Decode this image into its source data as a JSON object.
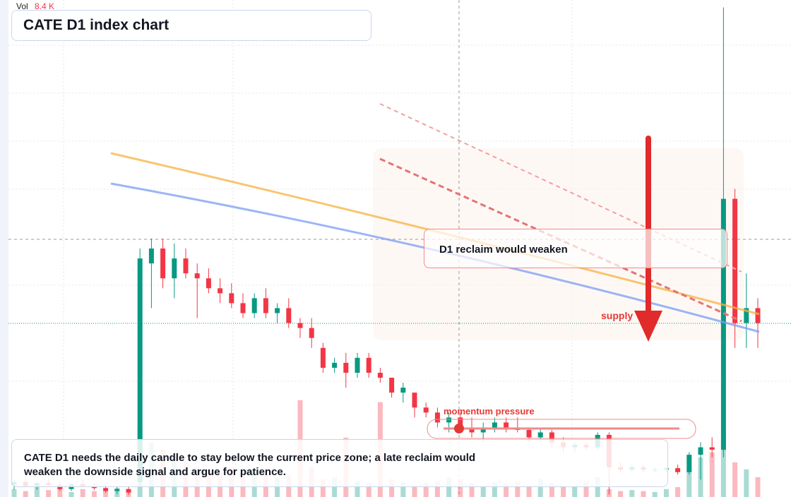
{
  "header": {
    "vol_label": "Vol",
    "vol_value": "8.4 K",
    "title": "CATE D1 index chart"
  },
  "chart_data": {
    "type": "candlestick",
    "ylim": [
      0,
      100
    ],
    "volume_ylim": [
      0,
      100
    ],
    "up_color": "#089981",
    "down_color": "#f23645",
    "candles": [
      [
        2.5,
        3.5,
        1.5,
        3
      ],
      [
        3,
        3.8,
        2,
        2.2
      ],
      [
        2.2,
        3,
        1.5,
        2.8
      ],
      [
        2.8,
        3.6,
        2,
        2.4
      ],
      [
        2.4,
        3.2,
        1.2,
        1.6
      ],
      [
        1.6,
        2.8,
        1.2,
        2.6
      ],
      [
        2.6,
        3.4,
        2,
        2.2
      ],
      [
        2.2,
        2.8,
        1.4,
        1.8
      ],
      [
        1.8,
        2.4,
        0.8,
        1.2
      ],
      [
        1.2,
        2,
        0.6,
        1.6
      ],
      [
        1.6,
        2.2,
        0.4,
        0.9
      ],
      [
        3,
        50,
        2,
        48
      ],
      [
        47,
        52,
        38,
        50
      ],
      [
        50,
        52,
        42,
        44
      ],
      [
        44,
        51,
        40,
        48
      ],
      [
        48,
        50,
        44,
        45
      ],
      [
        45,
        47,
        36,
        44
      ],
      [
        44,
        46,
        41,
        42
      ],
      [
        42,
        44,
        39,
        41
      ],
      [
        41,
        43,
        38,
        39
      ],
      [
        39,
        41,
        36,
        37
      ],
      [
        37,
        41,
        36,
        40
      ],
      [
        40,
        42,
        36,
        37
      ],
      [
        37,
        39,
        35,
        38
      ],
      [
        38,
        40,
        34,
        35
      ],
      [
        35,
        36,
        32,
        34
      ],
      [
        34,
        36,
        30,
        32
      ],
      [
        30,
        31,
        25,
        26
      ],
      [
        26,
        28,
        25,
        27
      ],
      [
        27,
        29,
        22,
        25
      ],
      [
        25,
        29,
        24,
        28
      ],
      [
        28,
        29,
        24,
        25
      ],
      [
        25,
        26,
        23,
        24
      ],
      [
        24,
        24,
        20,
        21
      ],
      [
        21,
        23,
        19,
        22
      ],
      [
        21,
        21,
        16,
        18
      ],
      [
        18,
        19,
        16,
        17
      ],
      [
        17,
        18,
        14,
        15
      ],
      [
        15,
        17,
        13,
        16
      ],
      [
        16,
        17,
        13,
        14
      ],
      [
        14,
        16,
        12,
        13
      ],
      [
        13,
        15,
        11,
        14
      ],
      [
        14,
        16,
        13,
        15
      ],
      [
        15,
        16,
        13,
        14
      ],
      [
        14,
        16,
        13,
        13.5
      ],
      [
        13.5,
        14,
        11,
        12
      ],
      [
        12,
        14,
        11,
        13
      ],
      [
        13,
        13.5,
        10,
        11
      ],
      [
        11,
        12,
        9,
        10
      ],
      [
        10,
        11,
        9,
        10.5
      ],
      [
        10.5,
        11,
        9.5,
        10
      ],
      [
        10,
        13,
        9.5,
        12.5
      ],
      [
        12.5,
        13,
        0.5,
        6
      ],
      [
        6,
        7,
        5,
        5.5
      ],
      [
        5.5,
        6.5,
        5,
        6
      ],
      [
        6,
        6.5,
        5,
        5.5
      ],
      [
        5.5,
        6,
        5,
        5.5
      ],
      [
        5.5,
        6,
        5,
        5.8
      ],
      [
        5.8,
        6.5,
        4.5,
        5
      ],
      [
        5,
        9,
        4.5,
        8.5
      ],
      [
        8.5,
        11,
        3.5,
        10
      ],
      [
        10,
        12,
        8,
        9.5
      ],
      [
        9.5,
        98.5,
        8,
        60
      ],
      [
        60,
        62,
        30,
        35
      ],
      [
        35,
        45,
        30,
        38
      ],
      [
        38,
        40,
        30,
        35
      ]
    ],
    "volume": [
      8,
      6,
      10,
      7,
      9,
      5,
      8,
      6,
      7,
      9,
      6,
      70,
      55,
      48,
      40,
      35,
      30,
      28,
      25,
      30,
      22,
      26,
      24,
      20,
      22,
      98,
      30,
      18,
      20,
      60,
      16,
      14,
      96,
      18,
      15,
      12,
      14,
      16,
      20,
      18,
      14,
      12,
      15,
      13,
      16,
      12,
      18,
      14,
      12,
      10,
      16,
      20,
      8,
      6,
      7,
      6,
      5,
      8,
      10,
      30,
      40,
      45,
      60,
      35,
      28,
      20
    ]
  },
  "annotations": {
    "reclaim": "D1 reclaim would weaken",
    "supply": "supply",
    "momentum": "momentum pressure"
  },
  "footer": {
    "text": "CATE D1 needs the daily candle to stay below the current price zone; a late reclaim would weaken the downside signal and argue for patience."
  }
}
